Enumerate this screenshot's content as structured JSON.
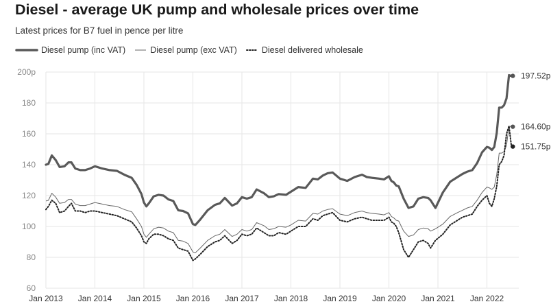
{
  "chart_data": {
    "type": "line",
    "title": "Diesel - average UK pump and wholesale prices over time",
    "subtitle": "Latest prices for B7 fuel in pence per litre",
    "xlabel": "",
    "ylabel": "",
    "xlim": [
      2013.0,
      2022.65
    ],
    "ylim": [
      60,
      200
    ],
    "grid": true,
    "y_ticks": [
      60,
      80,
      100,
      120,
      140,
      160,
      180,
      200
    ],
    "y_tick_labels": [
      "60",
      "80",
      "100",
      "120",
      "140",
      "160",
      "180",
      "200p"
    ],
    "x_ticks": [
      2013,
      2014,
      2015,
      2016,
      2017,
      2018,
      2019,
      2020,
      2021,
      2022
    ],
    "x_tick_labels": [
      "Jan 2013",
      "Jan 2014",
      "Jan 2015",
      "Jan 2016",
      "Jan 2017",
      "Jan 2018",
      "Jan 2019",
      "Jan 2020",
      "Jan 2021",
      "Jan 2022"
    ],
    "series": [
      {
        "name": "Diesel pump (inc VAT)",
        "color": "#595959",
        "style": "thick",
        "end_label": "197.52p",
        "end_value": 197.52,
        "x": [
          2013.0,
          2013.05,
          2013.12,
          2013.2,
          2013.28,
          2013.38,
          2013.46,
          2013.52,
          2013.6,
          2013.7,
          2013.8,
          2013.9,
          2014.0,
          2014.15,
          2014.3,
          2014.45,
          2014.6,
          2014.75,
          2014.85,
          2014.95,
          2015.0,
          2015.05,
          2015.1,
          2015.2,
          2015.3,
          2015.4,
          2015.5,
          2015.6,
          2015.7,
          2015.8,
          2015.9,
          2016.0,
          2016.05,
          2016.15,
          2016.3,
          2016.45,
          2016.55,
          2016.65,
          2016.8,
          2016.9,
          2017.0,
          2017.1,
          2017.2,
          2017.3,
          2017.45,
          2017.55,
          2017.65,
          2017.75,
          2017.9,
          2018.0,
          2018.15,
          2018.3,
          2018.45,
          2018.55,
          2018.65,
          2018.75,
          2018.85,
          2019.0,
          2019.15,
          2019.3,
          2019.45,
          2019.55,
          2019.65,
          2019.8,
          2019.9,
          2020.0,
          2020.05,
          2020.1,
          2020.15,
          2020.2,
          2020.3,
          2020.4,
          2020.5,
          2020.6,
          2020.7,
          2020.8,
          2020.85,
          2020.95,
          2021.1,
          2021.25,
          2021.4,
          2021.5,
          2021.6,
          2021.7,
          2021.8,
          2021.9,
          2022.0,
          2022.05,
          2022.1,
          2022.15,
          2022.2,
          2022.25,
          2022.3,
          2022.35,
          2022.4,
          2022.45,
          2022.5
        ],
        "y": [
          140,
          140.5,
          146,
          143,
          138.5,
          139,
          141.5,
          141.5,
          137.5,
          136.5,
          136.5,
          137.5,
          139,
          137.5,
          136.5,
          136,
          133.5,
          131.5,
          127,
          121,
          115.5,
          113,
          115,
          119.5,
          120.5,
          120,
          117.5,
          116.5,
          110.5,
          110,
          108.5,
          101.5,
          101,
          104.5,
          110.5,
          114,
          115,
          118.5,
          113.5,
          115,
          119,
          118,
          119,
          124,
          121.5,
          119,
          119.5,
          121,
          120.5,
          122.5,
          125.5,
          125,
          131,
          130.5,
          133,
          134.5,
          135,
          131,
          129.5,
          132,
          133.5,
          132,
          131.5,
          131,
          130.5,
          132.5,
          129.5,
          128.5,
          126.5,
          126,
          118,
          112,
          113,
          118,
          119,
          118.5,
          117,
          112,
          122,
          129,
          132,
          134,
          135.5,
          136.5,
          141,
          148,
          151.5,
          151,
          149.5,
          151.5,
          160.5,
          177,
          177,
          178.5,
          183,
          198,
          197.52
        ]
      },
      {
        "name": "Diesel pump (exc VAT)",
        "color": "#666666",
        "style": "thin",
        "end_label": "164.60p",
        "end_value": 164.6,
        "x": [
          2013.0,
          2013.05,
          2013.12,
          2013.2,
          2013.28,
          2013.38,
          2013.46,
          2013.52,
          2013.6,
          2013.7,
          2013.8,
          2013.9,
          2014.0,
          2014.15,
          2014.3,
          2014.45,
          2014.6,
          2014.75,
          2014.85,
          2014.95,
          2015.0,
          2015.05,
          2015.1,
          2015.2,
          2015.3,
          2015.4,
          2015.5,
          2015.6,
          2015.7,
          2015.8,
          2015.9,
          2016.0,
          2016.05,
          2016.15,
          2016.3,
          2016.45,
          2016.55,
          2016.65,
          2016.8,
          2016.9,
          2017.0,
          2017.1,
          2017.2,
          2017.3,
          2017.45,
          2017.55,
          2017.65,
          2017.75,
          2017.9,
          2018.0,
          2018.15,
          2018.3,
          2018.45,
          2018.55,
          2018.65,
          2018.75,
          2018.85,
          2019.0,
          2019.15,
          2019.3,
          2019.45,
          2019.55,
          2019.65,
          2019.8,
          2019.9,
          2020.0,
          2020.05,
          2020.1,
          2020.15,
          2020.2,
          2020.3,
          2020.4,
          2020.5,
          2020.6,
          2020.7,
          2020.8,
          2020.85,
          2020.95,
          2021.1,
          2021.25,
          2021.4,
          2021.5,
          2021.6,
          2021.7,
          2021.8,
          2021.9,
          2022.0,
          2022.05,
          2022.1,
          2022.15,
          2022.2,
          2022.25,
          2022.3,
          2022.35,
          2022.4,
          2022.45,
          2022.5
        ],
        "y": [
          116.5,
          116.9,
          121.5,
          119,
          115,
          115.5,
          117.5,
          117.5,
          114.5,
          113.5,
          113.5,
          114.5,
          115.5,
          114.5,
          113.5,
          113,
          111,
          109.5,
          105,
          100,
          95,
          93,
          95,
          98.5,
          99.5,
          99,
          97,
          96,
          91,
          90.5,
          89,
          83.5,
          83,
          86,
          91,
          94,
          95,
          98,
          93.5,
          95,
          98,
          97,
          98,
          102.5,
          100.5,
          98,
          98.5,
          100,
          99.5,
          101,
          104,
          103.5,
          108.5,
          108,
          110,
          111,
          111.5,
          108,
          107,
          109,
          110,
          109,
          108.5,
          108,
          107.5,
          109,
          106.5,
          105.5,
          104,
          103.5,
          97,
          93.5,
          94.5,
          98,
          99,
          98.5,
          97,
          98.5,
          101.5,
          106.5,
          109,
          110.5,
          112,
          113,
          117,
          122,
          125.5,
          125,
          124,
          125.5,
          133.5,
          147.5,
          147.5,
          148.5,
          152.5,
          165,
          164.6
        ]
      },
      {
        "name": "Diesel delivered wholesale",
        "color": "#222222",
        "style": "dotted",
        "end_label": "151.75p",
        "end_value": 151.75,
        "x": [
          2013.0,
          2013.05,
          2013.12,
          2013.2,
          2013.28,
          2013.38,
          2013.46,
          2013.52,
          2013.6,
          2013.7,
          2013.8,
          2013.9,
          2014.0,
          2014.15,
          2014.3,
          2014.45,
          2014.6,
          2014.75,
          2014.85,
          2014.95,
          2015.0,
          2015.05,
          2015.1,
          2015.2,
          2015.3,
          2015.4,
          2015.5,
          2015.6,
          2015.7,
          2015.8,
          2015.9,
          2016.0,
          2016.05,
          2016.15,
          2016.3,
          2016.45,
          2016.55,
          2016.65,
          2016.8,
          2016.9,
          2017.0,
          2017.1,
          2017.2,
          2017.3,
          2017.45,
          2017.55,
          2017.65,
          2017.75,
          2017.9,
          2018.0,
          2018.15,
          2018.3,
          2018.45,
          2018.55,
          2018.65,
          2018.75,
          2018.85,
          2019.0,
          2019.15,
          2019.3,
          2019.45,
          2019.55,
          2019.65,
          2019.8,
          2019.9,
          2020.0,
          2020.05,
          2020.1,
          2020.15,
          2020.2,
          2020.3,
          2020.4,
          2020.5,
          2020.6,
          2020.7,
          2020.8,
          2020.85,
          2020.95,
          2021.1,
          2021.25,
          2021.4,
          2021.5,
          2021.6,
          2021.7,
          2021.8,
          2021.9,
          2022.0,
          2022.05,
          2022.1,
          2022.15,
          2022.2,
          2022.25,
          2022.3,
          2022.35,
          2022.4,
          2022.45,
          2022.5
        ],
        "y": [
          111,
          113,
          117,
          115,
          109,
          110,
          113,
          115,
          110,
          110,
          109,
          110,
          110,
          109,
          108,
          107,
          105,
          103,
          99,
          94,
          90,
          89,
          92,
          95,
          95,
          94,
          92,
          91,
          86,
          85,
          84,
          78,
          79,
          82,
          87,
          90,
          91,
          94,
          89,
          91,
          95,
          94,
          95,
          99,
          96,
          94,
          94,
          96,
          95,
          97,
          100,
          100,
          105,
          104,
          107,
          108,
          109,
          104,
          103,
          105,
          106,
          105,
          104,
          104,
          104,
          106,
          103,
          102,
          100,
          96,
          85,
          80,
          85,
          90,
          91,
          89,
          86,
          91,
          95,
          101,
          104,
          106,
          107,
          108,
          113,
          117,
          120,
          115,
          113,
          118,
          126,
          140,
          142,
          146,
          160,
          165,
          151.75
        ]
      }
    ]
  }
}
